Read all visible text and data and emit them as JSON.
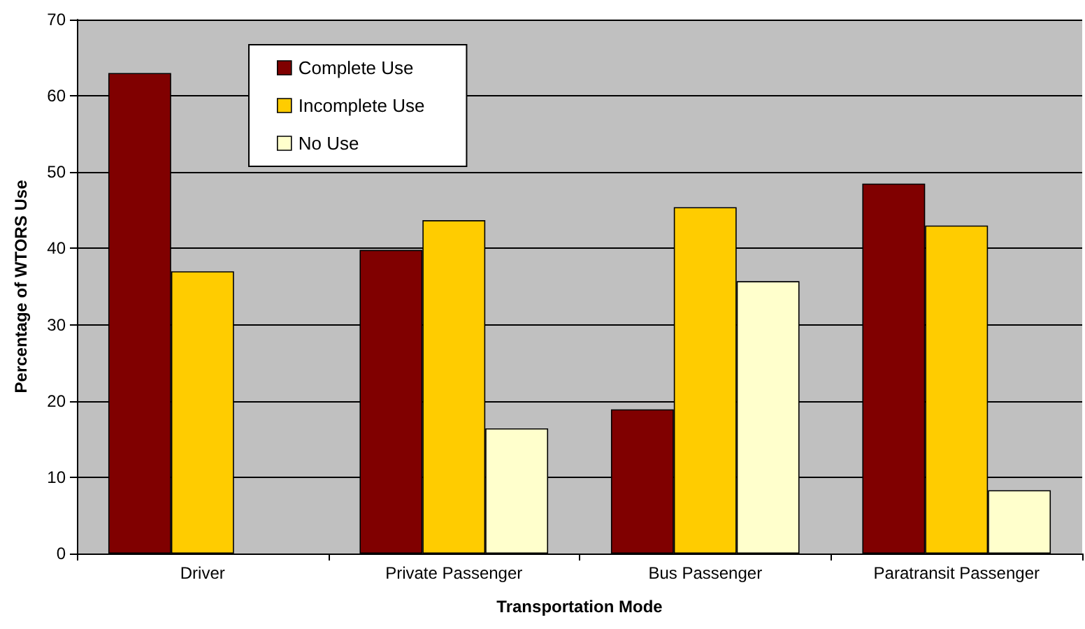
{
  "chart_data": {
    "type": "bar",
    "xlabel": "Transportation Mode",
    "ylabel": "Percentage of WTORS Use",
    "categories": [
      "Driver",
      "Private Passenger",
      "Bus Passenger",
      "Paratransit Passenger"
    ],
    "series": [
      {
        "name": "Complete Use",
        "color": "#800000",
        "values": [
          63,
          39.8,
          18.9,
          48.5
        ]
      },
      {
        "name": "Incomplete Use",
        "color": "#ffcc00",
        "values": [
          37,
          43.7,
          45.4,
          43
        ]
      },
      {
        "name": "No Use",
        "color": "#ffffcc",
        "values": [
          null,
          16.4,
          35.7,
          8.3
        ]
      }
    ],
    "ylim": [
      0,
      70
    ],
    "yticks": [
      0,
      10,
      20,
      30,
      40,
      50,
      60,
      70
    ],
    "grid": "y",
    "legend": "top left"
  }
}
